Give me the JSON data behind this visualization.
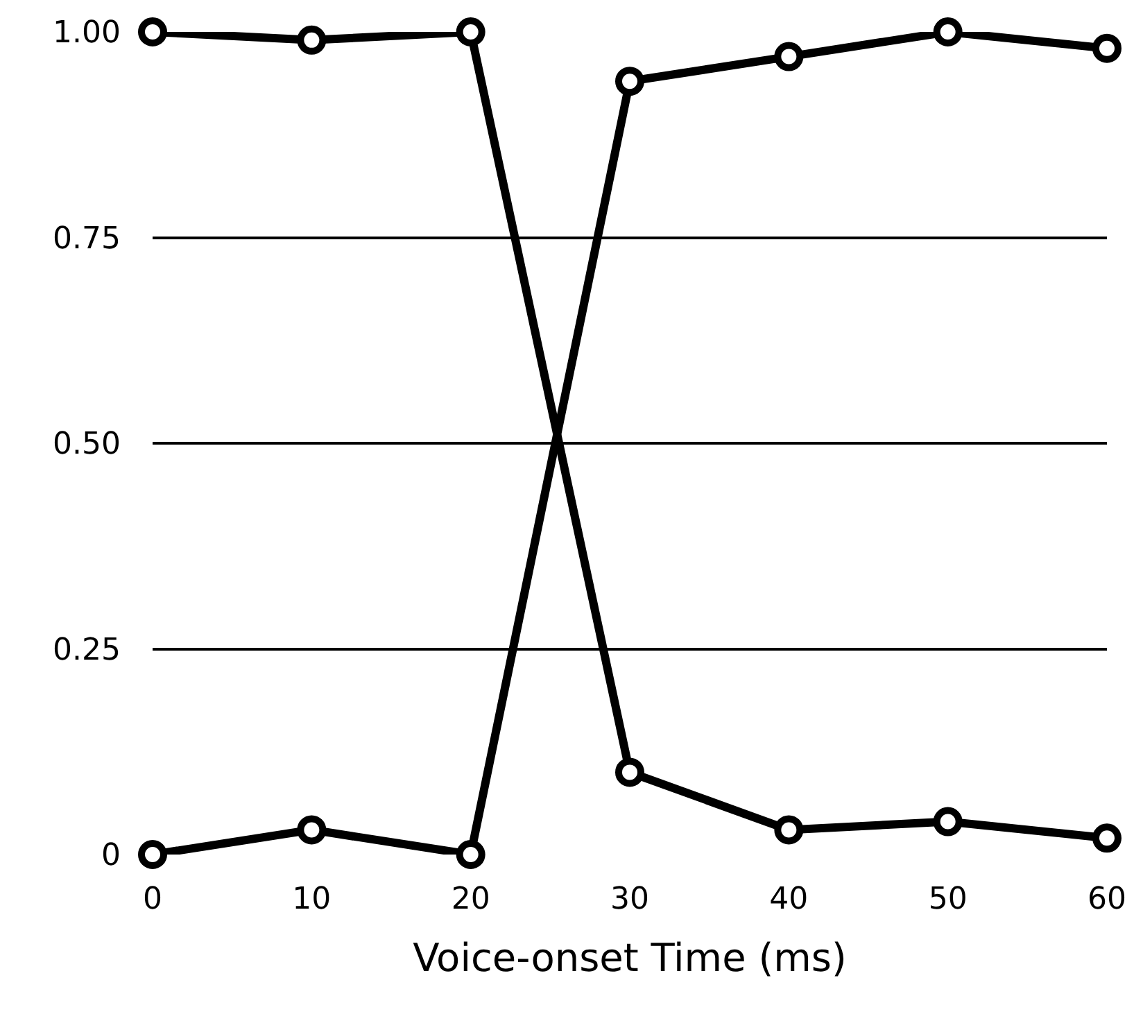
{
  "chart_data": {
    "type": "line",
    "xlabel": "Voice-onset Time (ms)",
    "x": [
      0,
      10,
      20,
      30,
      40,
      50,
      60
    ],
    "series": [
      {
        "color": "#000000",
        "values": [
          1.0,
          0.99,
          1.0,
          0.1,
          0.03,
          0.04,
          0.02
        ]
      },
      {
        "color": "#000000",
        "values": [
          0,
          0.03,
          0,
          0.94,
          0.97,
          1.0,
          0.98
        ]
      }
    ],
    "xlim": [
      0,
      60
    ],
    "xticks": [
      0,
      10,
      20,
      30,
      40,
      50,
      60
    ],
    "ylim": [
      0,
      1
    ],
    "yticks": [
      {
        "value": 0,
        "label": "0"
      },
      {
        "value": 0.25,
        "label": "0.25"
      },
      {
        "value": 0.5,
        "label": "0.50"
      },
      {
        "value": 0.75,
        "label": "0.75"
      },
      {
        "value": 1,
        "label": "1.00"
      }
    ],
    "grid": "y",
    "marker": "circle",
    "line_style": "solid"
  }
}
